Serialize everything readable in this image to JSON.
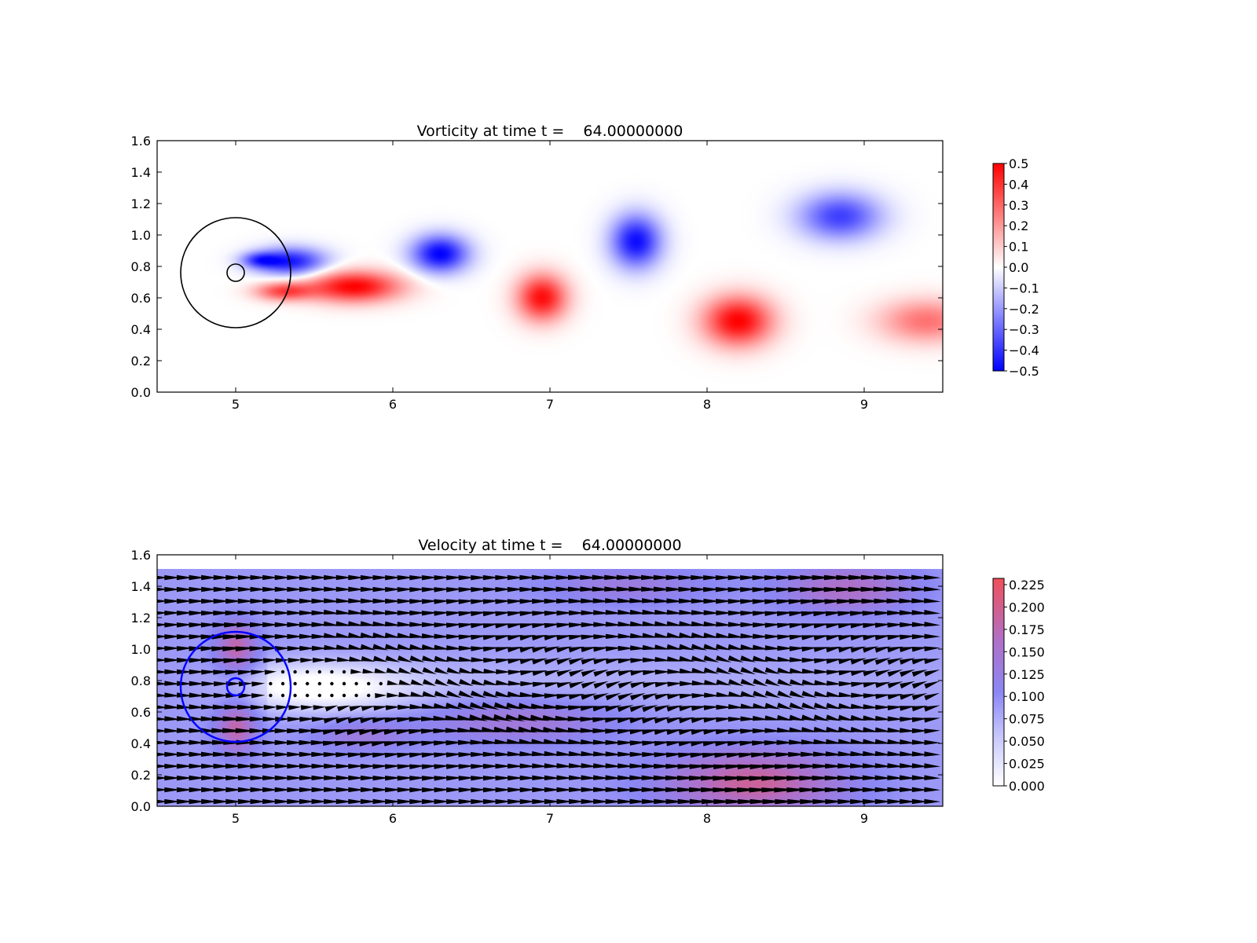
{
  "chart_data": [
    {
      "type": "heatmap",
      "title": "Vorticity at time t =    64.00000000",
      "xlabel": "",
      "ylabel": "",
      "xlim": [
        4.5,
        9.5
      ],
      "ylim": [
        0.0,
        1.6
      ],
      "x_ticks": [
        "5",
        "6",
        "7",
        "8",
        "9"
      ],
      "y_ticks": [
        "0.0",
        "0.2",
        "0.4",
        "0.6",
        "0.8",
        "1.0",
        "1.2",
        "1.4",
        "1.6"
      ],
      "colormap": "bwr",
      "colorbar_ticks": [
        "0.5",
        "0.4",
        "0.3",
        "0.2",
        "0.1",
        "0.0",
        "−0.1",
        "−0.2",
        "−0.3",
        "−0.4",
        "−0.5"
      ],
      "colorbar_range": [
        -0.5,
        0.5
      ],
      "circles": [
        {
          "cx": 5.0,
          "cy": 0.76,
          "r": 0.35,
          "color": "#000000"
        },
        {
          "cx": 5.0,
          "cy": 0.76,
          "r": 0.055,
          "color": "#000000"
        }
      ],
      "vortices": [
        {
          "x": 5.35,
          "y": 0.83,
          "sx": 0.22,
          "sy": 0.09,
          "w": -0.9
        },
        {
          "x": 5.15,
          "y": 0.84,
          "sx": 0.12,
          "sy": 0.05,
          "w": -0.6
        },
        {
          "x": 5.75,
          "y": 0.67,
          "sx": 0.3,
          "sy": 0.1,
          "w": 1.0
        },
        {
          "x": 5.3,
          "y": 0.64,
          "sx": 0.18,
          "sy": 0.06,
          "w": 0.7
        },
        {
          "x": 6.3,
          "y": 0.88,
          "sx": 0.18,
          "sy": 0.12,
          "w": 1.0,
          "sign": -1
        },
        {
          "x": 6.95,
          "y": 0.6,
          "sx": 0.16,
          "sy": 0.15,
          "w": 0.95
        },
        {
          "x": 7.55,
          "y": 0.96,
          "sx": 0.16,
          "sy": 0.17,
          "w": -0.95
        },
        {
          "x": 8.2,
          "y": 0.45,
          "sx": 0.22,
          "sy": 0.16,
          "w": 1.0
        },
        {
          "x": 8.85,
          "y": 1.12,
          "sx": 0.26,
          "sy": 0.15,
          "w": -0.75
        },
        {
          "x": 9.4,
          "y": 0.45,
          "sx": 0.3,
          "sy": 0.14,
          "w": 0.55
        }
      ]
    },
    {
      "type": "heatmap",
      "title": "Velocity at time t =    64.00000000",
      "xlabel": "",
      "ylabel": "",
      "xlim": [
        4.5,
        9.5
      ],
      "ylim": [
        0.0,
        1.6
      ],
      "field_ylim": [
        0.0,
        1.52
      ],
      "x_ticks": [
        "5",
        "6",
        "7",
        "8",
        "9"
      ],
      "y_ticks": [
        "0.0",
        "0.2",
        "0.4",
        "0.6",
        "0.8",
        "1.0",
        "1.2",
        "1.4",
        "1.6"
      ],
      "colormap": "white-blue-red",
      "colorbar_ticks": [
        "0.225",
        "0.200",
        "0.175",
        "0.150",
        "0.125",
        "0.100",
        "0.075",
        "0.050",
        "0.025",
        "0.000"
      ],
      "colorbar_range": [
        0.0,
        0.232
      ],
      "circles": [
        {
          "cx": 5.0,
          "cy": 0.76,
          "r": 0.35,
          "color": "#0000ff"
        },
        {
          "cx": 5.0,
          "cy": 0.76,
          "r": 0.055,
          "color": "#0000ff"
        }
      ],
      "quiver": {
        "dx": 0.078,
        "dy": 0.075,
        "arrow_color": "#000000"
      }
    }
  ]
}
